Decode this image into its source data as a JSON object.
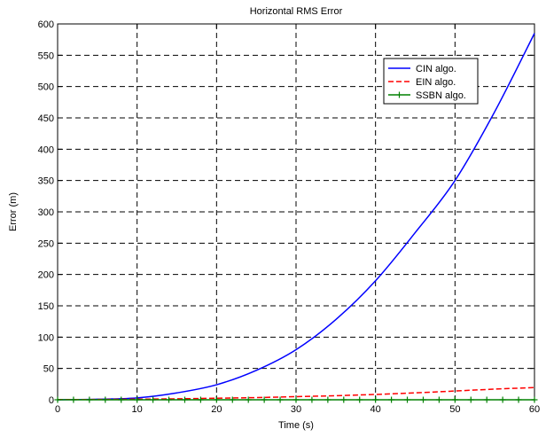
{
  "chart_data": {
    "type": "line",
    "title": "Horizontal RMS Error",
    "xlabel": "Time (s)",
    "ylabel": "Error (m)",
    "xlim": [
      0,
      60
    ],
    "ylim": [
      0,
      600
    ],
    "xticks": [
      0,
      10,
      20,
      30,
      40,
      50,
      60
    ],
    "yticks": [
      0,
      50,
      100,
      150,
      200,
      250,
      300,
      350,
      400,
      450,
      500,
      550,
      600
    ],
    "grid": true,
    "legend_position": "top-right",
    "x": [
      0,
      5,
      10,
      15,
      20,
      25,
      30,
      35,
      40,
      45,
      50,
      55,
      60
    ],
    "series": [
      {
        "name": "CIN algo.",
        "color": "#0000ff",
        "style": "solid",
        "values": [
          0,
          0.8,
          3,
          11,
          24,
          47,
          80,
          128,
          190,
          267,
          350,
          460,
          585
        ]
      },
      {
        "name": "EIN algo.",
        "color": "#ff0000",
        "style": "dashed",
        "values": [
          0.3,
          0.5,
          1,
          1.5,
          2.5,
          3.5,
          5,
          6.5,
          8.5,
          11,
          14,
          17,
          19.5
        ]
      },
      {
        "name": "SSBN algo.",
        "color": "#008000",
        "style": "solid-plus-markers",
        "values": [
          0,
          0,
          0,
          0,
          0,
          0,
          0,
          0,
          0,
          0,
          0,
          0,
          0
        ]
      }
    ]
  }
}
